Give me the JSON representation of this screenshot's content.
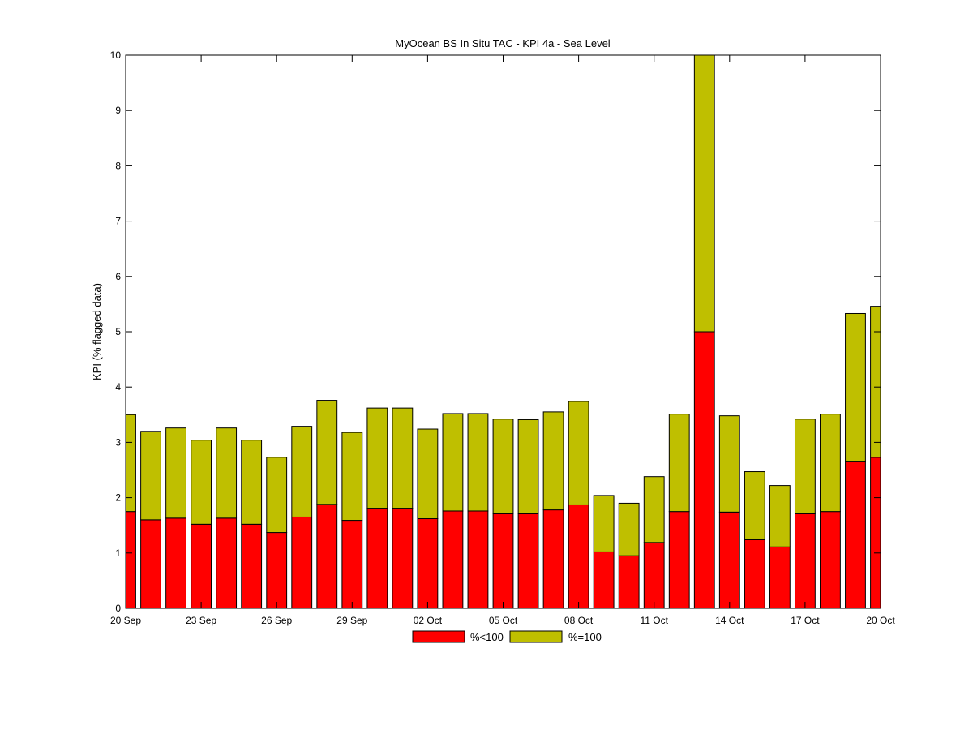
{
  "chart_data": {
    "type": "bar",
    "stacked": true,
    "title": "MyOcean  BS In Situ TAC - KPI 4a - Sea Level",
    "xlabel": "",
    "ylabel": "KPI (% flagged data)",
    "ylim": [
      0,
      10
    ],
    "yticks": [
      "0",
      "1",
      "2",
      "3",
      "4",
      "5",
      "6",
      "7",
      "8",
      "9",
      "10"
    ],
    "xlim": [
      "20 Sep",
      "20 Oct"
    ],
    "xticks": [
      "20 Sep",
      "23 Sep",
      "26 Sep",
      "29 Sep",
      "02 Oct",
      "05 Oct",
      "08 Oct",
      "11 Oct",
      "14 Oct",
      "17 Oct",
      "20 Oct"
    ],
    "categories": [
      "20 Sep",
      "21 Sep",
      "22 Sep",
      "23 Sep",
      "24 Sep",
      "25 Sep",
      "26 Sep",
      "27 Sep",
      "28 Sep",
      "29 Sep",
      "30 Sep",
      "01 Oct",
      "02 Oct",
      "03 Oct",
      "04 Oct",
      "05 Oct",
      "06 Oct",
      "07 Oct",
      "08 Oct",
      "09 Oct",
      "10 Oct",
      "11 Oct",
      "12 Oct",
      "13 Oct",
      "14 Oct",
      "15 Oct",
      "16 Oct",
      "17 Oct",
      "18 Oct",
      "19 Oct",
      "20 Oct"
    ],
    "series": [
      {
        "name": "%<100",
        "color": "#ff0000",
        "values": [
          1.75,
          1.6,
          1.63,
          1.52,
          1.63,
          1.52,
          1.37,
          1.65,
          1.88,
          1.59,
          1.81,
          1.81,
          1.62,
          1.76,
          1.76,
          1.71,
          1.71,
          1.78,
          1.87,
          1.02,
          0.95,
          1.19,
          1.75,
          5.0,
          1.74,
          1.24,
          1.11,
          1.71,
          1.75,
          2.66,
          2.73
        ]
      },
      {
        "name": "%=100",
        "color": "#bfbf00",
        "values": [
          1.75,
          1.6,
          1.63,
          1.52,
          1.63,
          1.52,
          1.36,
          1.64,
          1.88,
          1.59,
          1.81,
          1.81,
          1.62,
          1.76,
          1.76,
          1.71,
          1.7,
          1.77,
          1.87,
          1.02,
          0.95,
          1.19,
          1.76,
          5.0,
          1.74,
          1.23,
          1.11,
          1.71,
          1.76,
          2.67,
          2.73
        ]
      }
    ],
    "grid": false,
    "legend_position": "bottom-center"
  }
}
